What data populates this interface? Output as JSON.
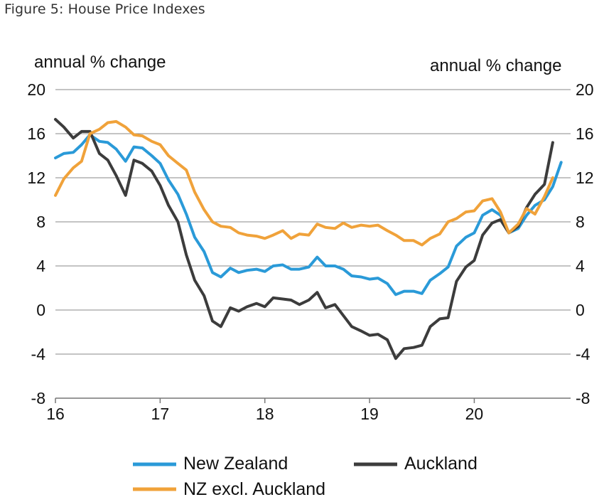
{
  "figure_title": "Figure 5: House Price Indexes",
  "chart_data": {
    "type": "line",
    "ylabel_left": "annual % change",
    "ylabel_right": "annual % change",
    "ylim": [
      -8,
      20
    ],
    "y_ticks": [
      "20",
      "16",
      "12",
      "8",
      "4",
      "0",
      "-4",
      "-8"
    ],
    "y_tick_values": [
      20,
      16,
      12,
      8,
      4,
      0,
      -4,
      -8
    ],
    "xlim": [
      16,
      20.92
    ],
    "x_ticks": [
      "16",
      "17",
      "18",
      "19",
      "20"
    ],
    "x_tick_values": [
      16,
      17,
      18,
      19,
      20
    ],
    "grid": true,
    "legend_position": "bottom",
    "series": [
      {
        "name": "New Zealand",
        "color": "#2a9ad8",
        "x": [
          16.0,
          16.08,
          16.17,
          16.25,
          16.33,
          16.42,
          16.5,
          16.58,
          16.67,
          16.75,
          16.83,
          16.92,
          17.0,
          17.08,
          17.17,
          17.25,
          17.33,
          17.42,
          17.5,
          17.58,
          17.67,
          17.75,
          17.83,
          17.92,
          18.0,
          18.08,
          18.17,
          18.25,
          18.33,
          18.42,
          18.5,
          18.58,
          18.67,
          18.75,
          18.83,
          18.92,
          19.0,
          19.08,
          19.17,
          19.25,
          19.33,
          19.42,
          19.5,
          19.58,
          19.67,
          19.75,
          19.83,
          19.92,
          20.0,
          20.08,
          20.17,
          20.25,
          20.33,
          20.42,
          20.5,
          20.58,
          20.67,
          20.75,
          20.83,
          20.92
        ],
        "y": [
          13.8,
          14.2,
          14.3,
          15.0,
          15.9,
          15.3,
          15.2,
          14.6,
          13.5,
          14.8,
          14.7,
          14.0,
          13.3,
          11.8,
          10.5,
          8.7,
          6.6,
          5.3,
          3.4,
          3.0,
          3.8,
          3.4,
          3.6,
          3.7,
          3.5,
          4.0,
          4.1,
          3.7,
          3.7,
          3.9,
          4.8,
          4.0,
          4.0,
          3.7,
          3.1,
          3.0,
          2.8,
          2.9,
          2.4,
          1.4,
          1.7,
          1.7,
          1.5,
          2.7,
          3.3,
          3.9,
          5.8,
          6.6,
          7.0,
          8.6,
          9.1,
          8.6,
          7.0,
          7.4,
          8.6,
          9.5,
          10.0,
          11.2,
          13.4,
          null
        ]
      },
      {
        "name": "Auckland",
        "color": "#3c3c3c",
        "x": [
          16.0,
          16.08,
          16.17,
          16.25,
          16.33,
          16.42,
          16.5,
          16.58,
          16.67,
          16.75,
          16.83,
          16.92,
          17.0,
          17.08,
          17.17,
          17.25,
          17.33,
          17.42,
          17.5,
          17.58,
          17.67,
          17.75,
          17.83,
          17.92,
          18.0,
          18.08,
          18.17,
          18.25,
          18.33,
          18.42,
          18.5,
          18.58,
          18.67,
          18.75,
          18.83,
          18.92,
          19.0,
          19.08,
          19.17,
          19.25,
          19.33,
          19.42,
          19.5,
          19.58,
          19.67,
          19.75,
          19.83,
          19.92,
          20.0,
          20.08,
          20.17,
          20.25,
          20.33,
          20.42,
          20.5,
          20.58,
          20.67,
          20.75,
          20.83,
          20.92
        ],
        "y": [
          17.3,
          16.6,
          15.6,
          16.2,
          16.2,
          14.2,
          13.6,
          12.2,
          10.4,
          13.6,
          13.3,
          12.6,
          11.3,
          9.5,
          8.0,
          5.0,
          2.7,
          1.3,
          -1.0,
          -1.5,
          0.2,
          -0.1,
          0.3,
          0.6,
          0.3,
          1.1,
          1.0,
          0.9,
          0.5,
          0.9,
          1.6,
          0.2,
          0.5,
          -0.5,
          -1.5,
          -1.9,
          -2.3,
          -2.2,
          -2.7,
          -4.4,
          -3.5,
          -3.4,
          -3.2,
          -1.5,
          -0.8,
          -0.7,
          2.6,
          3.9,
          4.5,
          6.8,
          7.9,
          8.2,
          7.0,
          7.6,
          9.3,
          10.5,
          11.4,
          15.2,
          null,
          null
        ]
      },
      {
        "name": "NZ excl. Auckland",
        "color": "#f0a23a",
        "x": [
          16.0,
          16.08,
          16.17,
          16.25,
          16.33,
          16.42,
          16.5,
          16.58,
          16.67,
          16.75,
          16.83,
          16.92,
          17.0,
          17.08,
          17.17,
          17.25,
          17.33,
          17.42,
          17.5,
          17.58,
          17.67,
          17.75,
          17.83,
          17.92,
          18.0,
          18.08,
          18.17,
          18.25,
          18.33,
          18.42,
          18.5,
          18.58,
          18.67,
          18.75,
          18.83,
          18.92,
          19.0,
          19.08,
          19.17,
          19.25,
          19.33,
          19.42,
          19.5,
          19.58,
          19.67,
          19.75,
          19.83,
          19.92,
          20.0,
          20.08,
          20.17,
          20.25,
          20.33,
          20.42,
          20.5,
          20.58,
          20.67,
          20.75,
          20.83,
          20.92
        ],
        "y": [
          10.4,
          11.9,
          12.9,
          13.5,
          16.0,
          16.4,
          17.0,
          17.1,
          16.6,
          15.9,
          15.8,
          15.3,
          15.0,
          14.0,
          13.3,
          12.7,
          10.7,
          9.1,
          8.0,
          7.6,
          7.5,
          7.0,
          6.8,
          6.7,
          6.5,
          6.8,
          7.2,
          6.5,
          6.9,
          6.8,
          7.8,
          7.5,
          7.4,
          7.9,
          7.5,
          7.7,
          7.6,
          7.7,
          7.2,
          6.8,
          6.3,
          6.3,
          5.9,
          6.5,
          6.9,
          8.0,
          8.3,
          8.9,
          9.0,
          9.9,
          10.1,
          8.9,
          7.0,
          7.8,
          9.2,
          8.7,
          10.3,
          12.0,
          null,
          null
        ]
      }
    ]
  },
  "legend": {
    "items": [
      "New Zealand",
      "Auckland",
      "NZ excl. Auckland"
    ]
  }
}
